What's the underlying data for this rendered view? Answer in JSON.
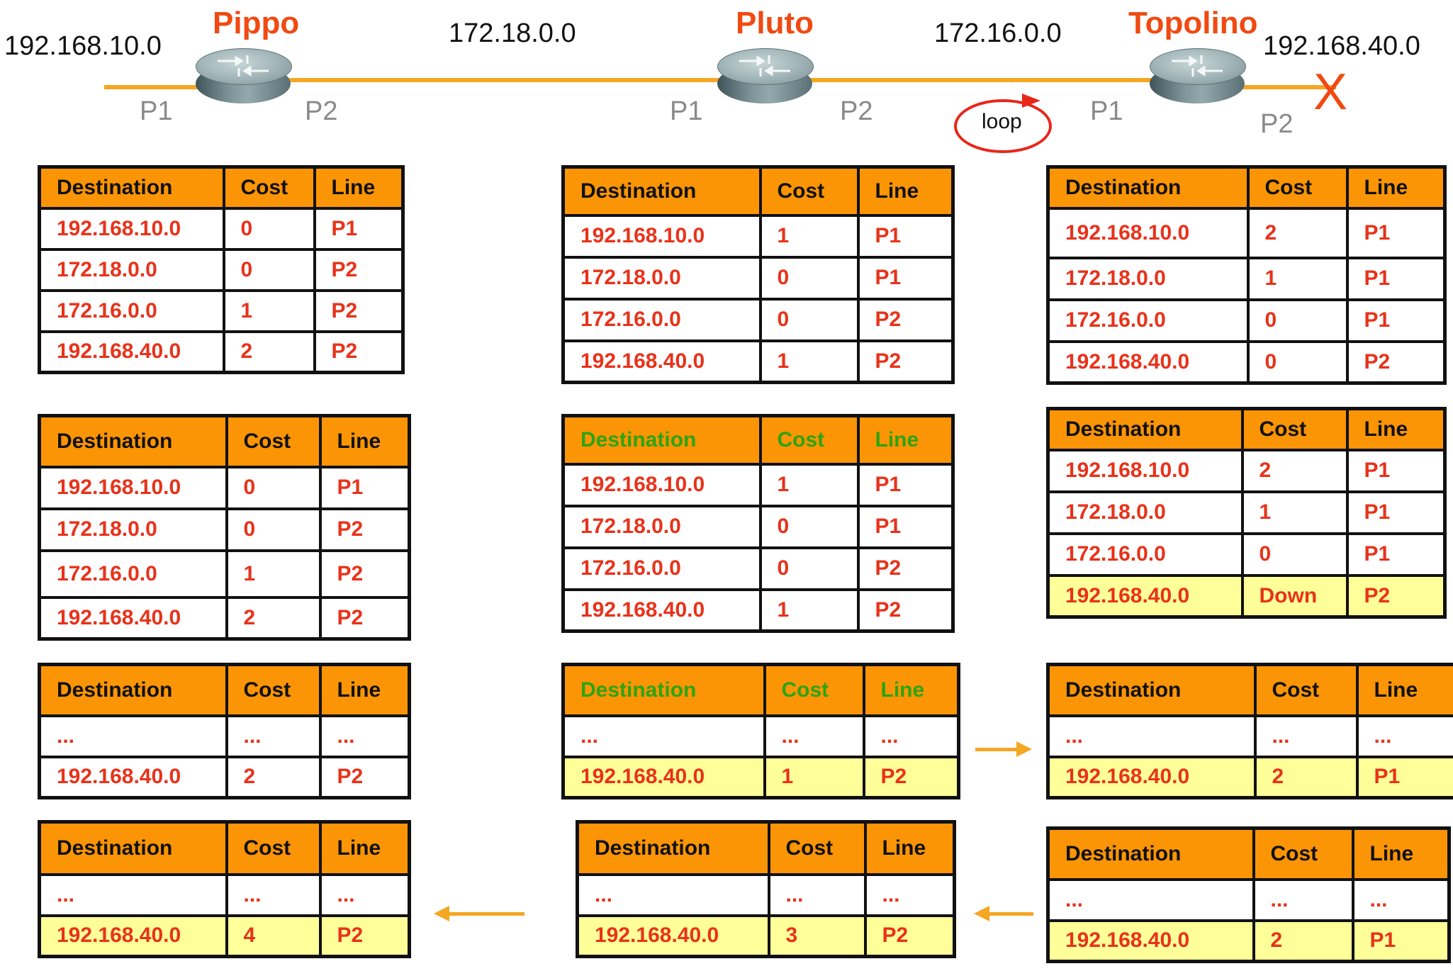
{
  "topology": {
    "networks": {
      "left": "192.168.10.0",
      "pippo_pluto": "172.18.0.0",
      "pluto_topolino": "172.16.0.0",
      "right": "192.168.40.0"
    },
    "routers": [
      {
        "name": "Pippo",
        "port_left": "P1",
        "port_right": "P2"
      },
      {
        "name": "Pluto",
        "port_left": "P1",
        "port_right": "P2"
      },
      {
        "name": "Topolino",
        "port_left": "P1",
        "port_right": "P2"
      }
    ],
    "loop_label": "loop",
    "failure_mark": "X",
    "colors": {
      "accent": "#f04a12",
      "wire": "#f5a623",
      "table_header": "#fb9505",
      "highlight": "#ffff99",
      "green_header_text": "#2ea312"
    }
  },
  "headers": {
    "destination": "Destination",
    "cost": "Cost",
    "line": "Line"
  },
  "tables": {
    "pippo_1": [
      [
        "192.168.10.0",
        "0",
        "P1"
      ],
      [
        "172.18.0.0",
        "0",
        "P2"
      ],
      [
        "172.16.0.0",
        "1",
        "P2"
      ],
      [
        "192.168.40.0",
        "2",
        "P2"
      ]
    ],
    "pluto_1": [
      [
        "192.168.10.0",
        "1",
        "P1"
      ],
      [
        "172.18.0.0",
        "0",
        "P1"
      ],
      [
        "172.16.0.0",
        "0",
        "P2"
      ],
      [
        "192.168.40.0",
        "1",
        "P2"
      ]
    ],
    "topolino_1": [
      [
        "192.168.10.0",
        "2",
        "P1"
      ],
      [
        "172.18.0.0",
        "1",
        "P1"
      ],
      [
        "172.16.0.0",
        "0",
        "P1"
      ],
      [
        "192.168.40.0",
        "0",
        "P2"
      ]
    ],
    "pippo_2": [
      [
        "192.168.10.0",
        "0",
        "P1"
      ],
      [
        "172.18.0.0",
        "0",
        "P2"
      ],
      [
        "172.16.0.0",
        "1",
        "P2"
      ],
      [
        "192.168.40.0",
        "2",
        "P2"
      ]
    ],
    "pluto_2": [
      [
        "192.168.10.0",
        "1",
        "P1"
      ],
      [
        "172.18.0.0",
        "0",
        "P1"
      ],
      [
        "172.16.0.0",
        "0",
        "P2"
      ],
      [
        "192.168.40.0",
        "1",
        "P2"
      ]
    ],
    "topolino_2": [
      [
        "192.168.10.0",
        "2",
        "P1"
      ],
      [
        "172.18.0.0",
        "1",
        "P1"
      ],
      [
        "172.16.0.0",
        "0",
        "P1"
      ],
      [
        "192.168.40.0",
        "Down",
        "P2"
      ]
    ],
    "pippo_3": [
      [
        "...",
        "...",
        "..."
      ],
      [
        "192.168.40.0",
        "2",
        "P2"
      ]
    ],
    "pluto_3": [
      [
        "...",
        "...",
        "..."
      ],
      [
        "192.168.40.0",
        "1",
        "P2"
      ]
    ],
    "topolino_3": [
      [
        "...",
        "...",
        "..."
      ],
      [
        "192.168.40.0",
        "2",
        "P1"
      ]
    ],
    "pippo_4": [
      [
        "...",
        "...",
        "..."
      ],
      [
        "192.168.40.0",
        "4",
        "P2"
      ]
    ],
    "pluto_4": [
      [
        "...",
        "...",
        "..."
      ],
      [
        "192.168.40.0",
        "3",
        "P2"
      ]
    ],
    "topolino_4": [
      [
        "...",
        "...",
        "..."
      ],
      [
        "192.168.40.0",
        "2",
        "P1"
      ]
    ]
  }
}
